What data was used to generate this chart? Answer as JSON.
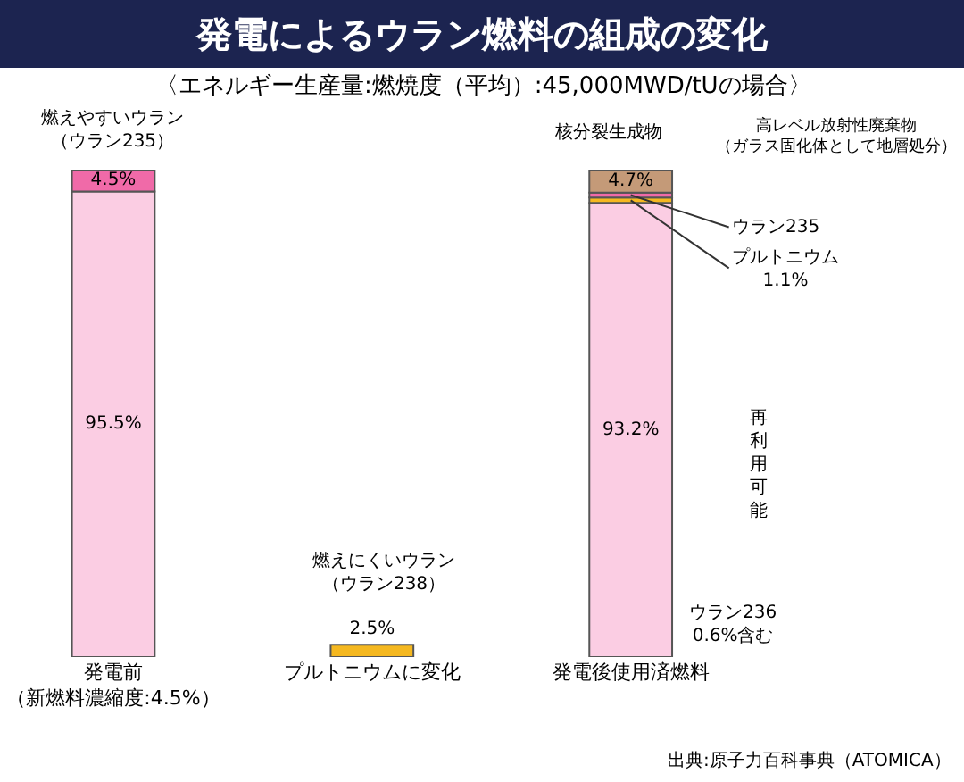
{
  "chart_data": {
    "type": "bar",
    "stacked": true,
    "title": "発電によるウラン燃料の組成の変化",
    "subtitle": "〈エネルギー生産量:燃焼度（平均）:45,000MWD/tUの場合〉",
    "categories": [
      "発電前（新燃料濃縮度:4.5%）",
      "プルトニウムに変化",
      "発電後使用済燃料"
    ],
    "series": [
      {
        "color": "#fbcde3",
        "values": [
          95.5,
          null,
          93.2
        ],
        "value_labels": [
          "95.5%",
          null,
          "93.2%"
        ]
      },
      {
        "color": "#f5b820",
        "values": [
          null,
          2.5,
          1.1
        ],
        "value_labels": [
          null,
          "2.5%",
          null
        ]
      },
      {
        "color": "#f06aa8",
        "values": [
          4.5,
          null,
          1.0
        ],
        "value_labels": [
          "4.5%",
          null,
          null
        ]
      },
      {
        "color": "#c49a78",
        "values": [
          null,
          null,
          4.7
        ],
        "value_labels": [
          null,
          null,
          "4.7%"
        ]
      }
    ],
    "annotations": [
      "燃えやすいウラン（ウラン235）",
      "燃えにくいウラン（ウラン238）",
      "核分裂生成物",
      "高レベル放射性廃棄物（ガラス固化体として地層処分）",
      {
        "text": "ウラン235",
        "x": "発電後使用済燃料",
        "y": 94.8
      },
      {
        "text": "プルトニウム\n1.1%",
        "x": "発電後使用済燃料",
        "y": 93.7
      },
      "ウラン236\n0.6%含む",
      "再利用可能",
      "出典:原子力百科事典（ATOMICA）"
    ]
  }
}
